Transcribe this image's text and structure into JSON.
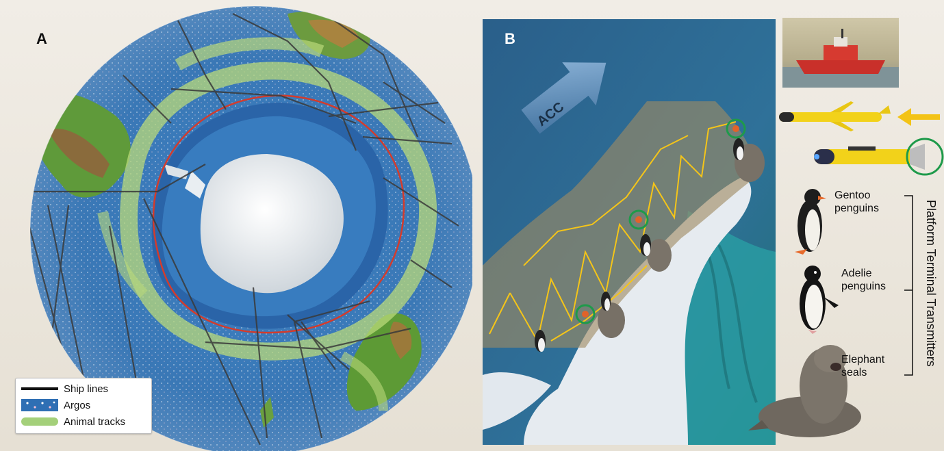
{
  "panels": {
    "a_label": "A",
    "b_label": "B"
  },
  "legend": {
    "ship_lines": "Ship lines",
    "argos": "Argos",
    "animal_tracks": "Animal tracks"
  },
  "map_b": {
    "current_label": "ACC"
  },
  "species": {
    "gentoo": "Gentoo\npenguins",
    "adelie": "Adelie\npenguins",
    "elephant": "Elephant\nseals"
  },
  "bracket_label": "Platform Terminal Transmitters",
  "colors": {
    "ocean_deep": "#2f6fb4",
    "ocean_shelf": "#1f5b9a",
    "animal_track": "#b9d97a",
    "front_line": "#d33b2c",
    "ship_line": "#3a3a3a",
    "glider_yellow": "#f2d21a",
    "path_yellow": "#f5c518",
    "ptt_ring": "#1e9a4a",
    "ptt_dot": "#e0632a"
  },
  "icons": {
    "ship": "research-ship-icon",
    "glider": "ocean-glider-icon",
    "auv": "auv-icon",
    "gentoo": "gentoo-penguin-icon",
    "adelie": "adelie-penguin-icon",
    "seal": "elephant-seal-icon"
  }
}
